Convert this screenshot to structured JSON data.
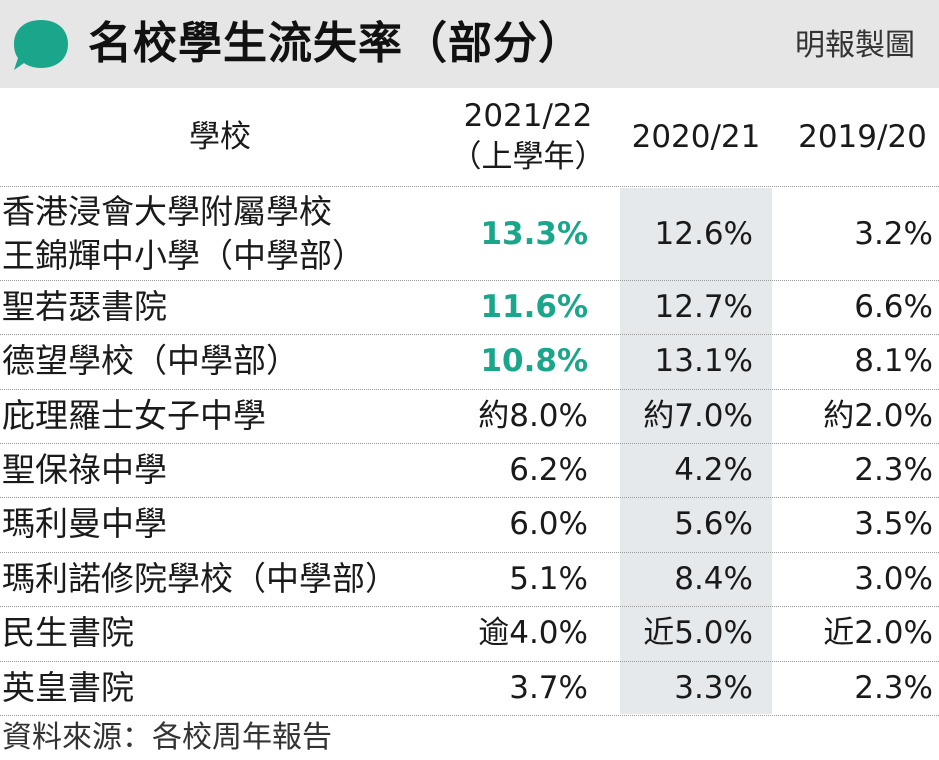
{
  "header": {
    "title": "名校學生流失率（部分）",
    "credit": "明報製圖",
    "accent_color": "#1aa68a",
    "icon": "speech-bubble-icon"
  },
  "chart_data": {
    "type": "table",
    "columns": [
      "學校",
      "2021/22（上學年）",
      "2020/21",
      "2019/20"
    ],
    "column_labels": {
      "school": "學校",
      "y2122_line1": "2021/22",
      "y2122_line2": "（上學年）",
      "y2021": "2020/21",
      "y1920": "2019/20"
    },
    "rows": [
      {
        "school_line1": "香港浸會大學附屬學校",
        "school_line2": "王錦輝中小學（中學部）",
        "y2122": "13.3%",
        "y2021": "12.6%",
        "y1920": "3.2%",
        "highlight": true
      },
      {
        "school_line1": "聖若瑟書院",
        "y2122": "11.6%",
        "y2021": "12.7%",
        "y1920": "6.6%",
        "highlight": true
      },
      {
        "school_line1": "德望學校（中學部）",
        "y2122": "10.8%",
        "y2021": "13.1%",
        "y1920": "8.1%",
        "highlight": true
      },
      {
        "school_line1": "庇理羅士女子中學",
        "y2122": "約8.0%",
        "y2021": "約7.0%",
        "y1920": "約2.0%",
        "highlight": false
      },
      {
        "school_line1": "聖保祿中學",
        "y2122": "6.2%",
        "y2021": "4.2%",
        "y1920": "2.3%",
        "highlight": false
      },
      {
        "school_line1": "瑪利曼中學",
        "y2122": "6.0%",
        "y2021": "5.6%",
        "y1920": "3.5%",
        "highlight": false
      },
      {
        "school_line1": "瑪利諾修院學校（中學部）",
        "y2122": "5.1%",
        "y2021": "8.4%",
        "y1920": "3.0%",
        "highlight": false
      },
      {
        "school_line1": "民生書院",
        "y2122": "逾4.0%",
        "y2021": "近5.0%",
        "y1920": "近2.0%",
        "highlight": false
      },
      {
        "school_line1": "英皇書院",
        "y2122": "3.7%",
        "y2021": "3.3%",
        "y1920": "2.3%",
        "highlight": false
      }
    ],
    "highlight_color": "#1aa68a",
    "shaded_column": "2020/21",
    "shade_color": "#e6e9ec"
  },
  "footer": {
    "source": "資料來源：各校周年報告"
  }
}
